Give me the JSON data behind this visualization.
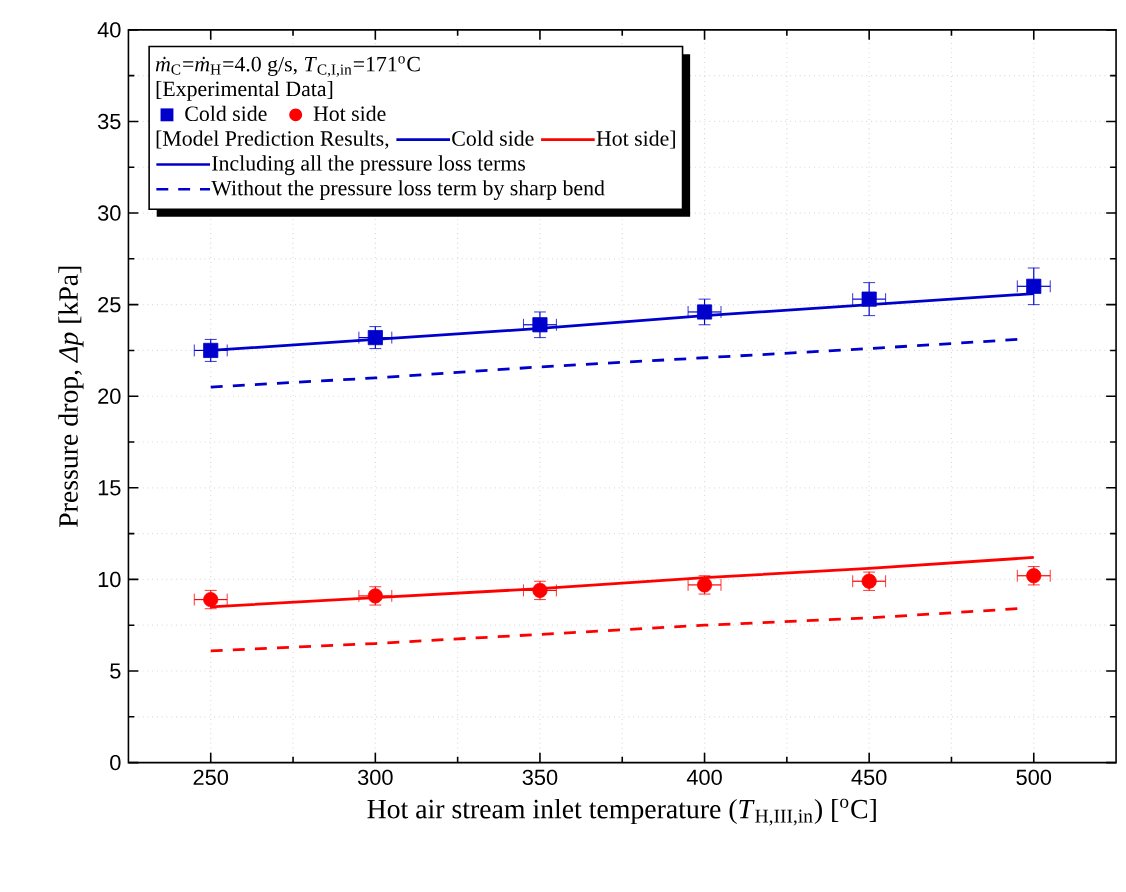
{
  "chart_data": {
    "type": "line",
    "legend_title": "*ṁ*$_{C}$=*ṁ*$_{H}$=4.0 g/s, *T*$_{C,I,in}$=171$^{o}$C",
    "xlabel": "Hot air stream inlet temperature (*T*$_{H,III,in}$) [$^{o}$C]",
    "ylabel": "Pressure drop, *Δp* [kPa]",
    "annotations": [
      "[Experimental Data]",
      "[Model Prediction Results,",
      "Including all the pressure loss terms"
    ],
    "xlim": [
      225,
      525
    ],
    "ylim": [
      0,
      40
    ],
    "xticks": [
      250,
      300,
      350,
      400,
      450,
      500
    ],
    "yticks": [
      0,
      5,
      10,
      15,
      20,
      25,
      30,
      35,
      40
    ],
    "grid": true,
    "legend": "top left",
    "series": [
      {
        "name": "Cold side",
        "type": "scatter",
        "marker": "square",
        "color": "#0000cc",
        "x": [
          250,
          300,
          350,
          400,
          450,
          500
        ],
        "values": [
          22.5,
          23.2,
          23.9,
          24.6,
          25.3,
          26.0
        ],
        "errors": [
          0.6,
          0.6,
          0.7,
          0.7,
          0.9,
          1.0
        ],
        "xerrors": [
          5,
          5,
          5,
          5,
          5,
          5
        ]
      },
      {
        "name": "Hot side",
        "type": "scatter",
        "marker": "circle",
        "color": "#ff0000",
        "x": [
          250,
          300,
          350,
          400,
          450,
          500
        ],
        "values": [
          8.9,
          9.1,
          9.4,
          9.7,
          9.9,
          10.2
        ],
        "errors": [
          0.5,
          0.5,
          0.5,
          0.5,
          0.5,
          0.5
        ],
        "xerrors": [
          5,
          5,
          5,
          5,
          5,
          5
        ]
      },
      {
        "name": "Cold side",
        "line_style": "solid",
        "color": "#0000cc",
        "x": [
          250,
          300,
          350,
          400,
          450,
          500
        ],
        "values": [
          22.5,
          23.1,
          23.7,
          24.4,
          25.0,
          25.6
        ]
      },
      {
        "name": "Hot side]",
        "line_style": "solid",
        "color": "#ff0000",
        "x": [
          250,
          300,
          350,
          400,
          450,
          500
        ],
        "values": [
          8.5,
          9.0,
          9.5,
          10.1,
          10.6,
          11.2
        ]
      },
      {
        "name": "Without the pressure loss term by sharp bend",
        "line_style": "dashed",
        "color": "#0000cc",
        "x": [
          250,
          300,
          350,
          400,
          450,
          495
        ],
        "values": [
          20.5,
          21.0,
          21.6,
          22.1,
          22.6,
          23.1
        ]
      },
      {
        "line_style": "dashed",
        "color": "#ff0000",
        "x": [
          250,
          300,
          350,
          400,
          450,
          495
        ],
        "values": [
          6.1,
          6.5,
          7.0,
          7.5,
          7.9,
          8.4
        ]
      }
    ]
  }
}
